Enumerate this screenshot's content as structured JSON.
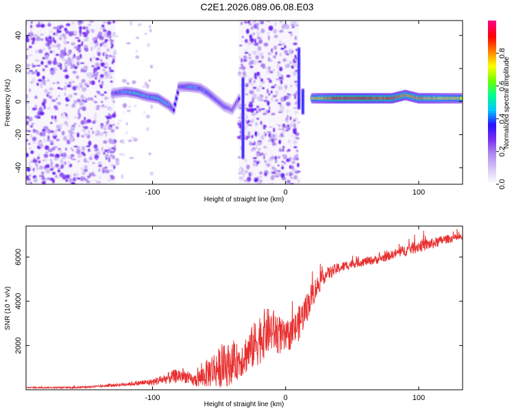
{
  "figure": {
    "title": "C2E1.2026.089.06.08.E03"
  },
  "chart_data": [
    {
      "type": "heatmap",
      "title": "",
      "xlabel": "Height of straight line (km)",
      "ylabel": "Frequency (Hz)",
      "xlim": [
        -195,
        133
      ],
      "ylim": [
        -50,
        49
      ],
      "xticks": [
        -100,
        0,
        100
      ],
      "yticks": [
        -40,
        -20,
        0,
        20,
        40
      ],
      "colorbar": {
        "label": "Normalized spectral amplitude",
        "range": [
          0.0,
          1.0
        ],
        "ticks": [
          "0.0",
          "0.2",
          "0.4",
          "0.6",
          "0.8"
        ],
        "colors": [
          "#ffffff",
          "#d6c8f5",
          "#b08cf0",
          "#7a30f0",
          "#2a10ff",
          "#00c8ff",
          "#00ff90",
          "#70ff00",
          "#ffff00",
          "#ff8000",
          "#ff0000",
          "#ff0080"
        ]
      },
      "noise_regions": [
        {
          "x_range": [
            -195,
            -128
          ],
          "density": "high"
        },
        {
          "x_range": [
            -128,
            -100
          ],
          "density": "sparse"
        },
        {
          "x_range": [
            -35,
            10
          ],
          "density": "high"
        }
      ],
      "ridge": [
        {
          "x": -130,
          "freq": 5,
          "amp": 0.35
        },
        {
          "x": -120,
          "freq": 6,
          "amp": 0.45
        },
        {
          "x": -112,
          "freq": 5,
          "amp": 0.5
        },
        {
          "x": -104,
          "freq": 3,
          "amp": 0.45
        },
        {
          "x": -96,
          "freq": 2,
          "amp": 0.5
        },
        {
          "x": -88,
          "freq": -2,
          "amp": 0.45
        },
        {
          "x": -84,
          "freq": -5,
          "amp": 0.35
        },
        {
          "x": -80,
          "freq": 9,
          "amp": 0.35
        },
        {
          "x": -72,
          "freq": 9,
          "amp": 0.45
        },
        {
          "x": -64,
          "freq": 8,
          "amp": 0.4
        },
        {
          "x": -58,
          "freq": 5,
          "amp": 0.4
        },
        {
          "x": -52,
          "freq": 1,
          "amp": 0.35
        },
        {
          "x": -46,
          "freq": -3,
          "amp": 0.35
        },
        {
          "x": -40,
          "freq": -5,
          "amp": 0.3
        },
        {
          "x": -34,
          "freq": 3,
          "amp": 0.3
        },
        {
          "x": 20,
          "freq": 2,
          "amp": 0.7
        },
        {
          "x": 40,
          "freq": 2,
          "amp": 0.9
        },
        {
          "x": 60,
          "freq": 2,
          "amp": 0.9
        },
        {
          "x": 80,
          "freq": 2,
          "amp": 0.85
        },
        {
          "x": 90,
          "freq": 4,
          "amp": 0.8
        },
        {
          "x": 100,
          "freq": 2,
          "amp": 0.8
        },
        {
          "x": 115,
          "freq": 2,
          "amp": 0.75
        },
        {
          "x": 133,
          "freq": 2,
          "amp": 0.7
        }
      ],
      "vertical_streaks": [
        {
          "x": -32,
          "f_from": -35,
          "f_to": 15
        },
        {
          "x": 10,
          "f_from": -5,
          "f_to": 33
        },
        {
          "x": 13,
          "f_from": -8,
          "f_to": 8
        }
      ]
    },
    {
      "type": "line",
      "title": "",
      "xlabel": "Height of straight line (km)",
      "ylabel": "SNR (10 * v/v)",
      "xlim": [
        -195,
        133
      ],
      "ylim": [
        0,
        7400
      ],
      "xticks": [
        -100,
        0,
        100
      ],
      "yticks": [
        2000,
        4000,
        6000
      ],
      "series": [
        {
          "name": "SNR",
          "color": "#e83030",
          "x": [
            -195,
            -160,
            -140,
            -120,
            -100,
            -90,
            -80,
            -75,
            -70,
            -65,
            -60,
            -55,
            -50,
            -45,
            -40,
            -35,
            -30,
            -25,
            -20,
            -15,
            -10,
            -5,
            0,
            5,
            10,
            15,
            20,
            25,
            30,
            40,
            50,
            60,
            70,
            80,
            90,
            100,
            110,
            120,
            133
          ],
          "y": [
            100,
            100,
            150,
            250,
            350,
            500,
            650,
            600,
            400,
            500,
            700,
            900,
            1000,
            1100,
            1200,
            1300,
            1600,
            1900,
            2300,
            2600,
            2700,
            2500,
            2300,
            2600,
            3000,
            3600,
            4300,
            4800,
            5200,
            5500,
            5700,
            5800,
            5900,
            6100,
            6300,
            6500,
            6600,
            6800,
            6900
          ],
          "noise": [
            30,
            40,
            50,
            80,
            150,
            250,
            350,
            300,
            250,
            400,
            600,
            800,
            900,
            1000,
            900,
            800,
            900,
            1000,
            1200,
            1100,
            1000,
            900,
            700,
            700,
            800,
            700,
            600,
            450,
            300,
            250,
            200,
            200,
            200,
            200,
            250,
            300,
            250,
            200,
            150
          ]
        }
      ]
    }
  ]
}
